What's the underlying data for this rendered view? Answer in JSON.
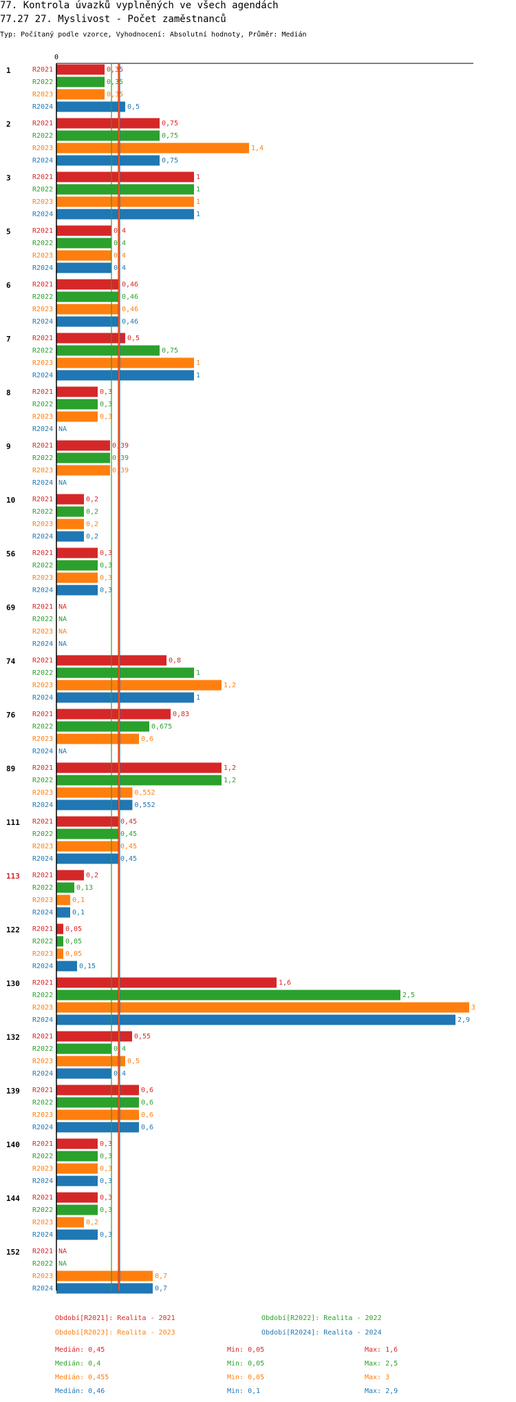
{
  "title": "77. Kontrola úvazků vyplněných ve všech agendách",
  "subtitle": "77.27 27. Myslivost - Počet zaměstnanců",
  "info": "Typ: Počítaný podle vzorce, Vyhodnocení: Absolutní hodnoty, Průměr: Medián",
  "colors": {
    "R2021": "#d62728",
    "R2022": "#2ca02c",
    "R2023": "#ff7f0e",
    "R2024": "#1f77b4",
    "highlight": "#d62728",
    "text": "#000000"
  },
  "chart_data": {
    "type": "bar",
    "orientation": "horizontal",
    "axis_zero_label": "0",
    "xlim": [
      0,
      3
    ],
    "series_names": [
      "R2021",
      "R2022",
      "R2023",
      "R2024"
    ],
    "na_label": "NA",
    "groups": [
      {
        "label": "1",
        "values": [
          0.35,
          0.35,
          0.35,
          0.5
        ],
        "labels": [
          "0,35",
          "0,35",
          "0,35",
          "0,5"
        ]
      },
      {
        "label": "2",
        "values": [
          0.75,
          0.75,
          1.4,
          0.75
        ],
        "labels": [
          "0,75",
          "0,75",
          "1,4",
          "0,75"
        ]
      },
      {
        "label": "3",
        "values": [
          1,
          1,
          1,
          1
        ],
        "labels": [
          "1",
          "1",
          "1",
          "1"
        ]
      },
      {
        "label": "5",
        "values": [
          0.4,
          0.4,
          0.4,
          0.4
        ],
        "labels": [
          "0,4",
          "0,4",
          "0,4",
          "0,4"
        ]
      },
      {
        "label": "6",
        "values": [
          0.46,
          0.46,
          0.46,
          0.46
        ],
        "labels": [
          "0,46",
          "0,46",
          "0,46",
          "0,46"
        ]
      },
      {
        "label": "7",
        "values": [
          0.5,
          0.75,
          1,
          1
        ],
        "labels": [
          "0,5",
          "0,75",
          "1",
          "1"
        ]
      },
      {
        "label": "8",
        "values": [
          0.3,
          0.3,
          0.3,
          null
        ],
        "labels": [
          "0,3",
          "0,3",
          "0,3",
          "NA"
        ]
      },
      {
        "label": "9",
        "values": [
          0.39,
          0.39,
          0.39,
          null
        ],
        "labels": [
          "0,39",
          "0,39",
          "0,39",
          "NA"
        ]
      },
      {
        "label": "10",
        "values": [
          0.2,
          0.2,
          0.2,
          0.2
        ],
        "labels": [
          "0,2",
          "0,2",
          "0,2",
          "0,2"
        ]
      },
      {
        "label": "56",
        "values": [
          0.3,
          0.3,
          0.3,
          0.3
        ],
        "labels": [
          "0,3",
          "0,3",
          "0,3",
          "0,3"
        ]
      },
      {
        "label": "69",
        "values": [
          null,
          null,
          null,
          null
        ],
        "labels": [
          "NA",
          "NA",
          "NA",
          "NA"
        ]
      },
      {
        "label": "74",
        "values": [
          0.8,
          1,
          1.2,
          1
        ],
        "labels": [
          "0,8",
          "1",
          "1,2",
          "1"
        ]
      },
      {
        "label": "76",
        "values": [
          0.83,
          0.675,
          0.6,
          null
        ],
        "labels": [
          "0,83",
          "0,675",
          "0,6",
          "NA"
        ]
      },
      {
        "label": "89",
        "values": [
          1.2,
          1.2,
          0.552,
          0.552
        ],
        "labels": [
          "1,2",
          "1,2",
          "0,552",
          "0,552"
        ]
      },
      {
        "label": "111",
        "values": [
          0.45,
          0.45,
          0.45,
          0.45
        ],
        "labels": [
          "0,45",
          "0,45",
          "0,45",
          "0,45"
        ]
      },
      {
        "label": "113",
        "highlight": true,
        "values": [
          0.2,
          0.13,
          0.1,
          0.1
        ],
        "labels": [
          "0,2",
          "0,13",
          "0,1",
          "0,1"
        ]
      },
      {
        "label": "122",
        "values": [
          0.05,
          0.05,
          0.05,
          0.15
        ],
        "labels": [
          "0,05",
          "0,05",
          "0,05",
          "0,15"
        ]
      },
      {
        "label": "130",
        "values": [
          1.6,
          2.5,
          3,
          2.9
        ],
        "labels": [
          "1,6",
          "2,5",
          "3",
          "2,9"
        ]
      },
      {
        "label": "132",
        "values": [
          0.55,
          0.4,
          0.5,
          0.4
        ],
        "labels": [
          "0,55",
          "0,4",
          "0,5",
          "0,4"
        ]
      },
      {
        "label": "139",
        "values": [
          0.6,
          0.6,
          0.6,
          0.6
        ],
        "labels": [
          "0,6",
          "0,6",
          "0,6",
          "0,6"
        ]
      },
      {
        "label": "140",
        "values": [
          0.3,
          0.3,
          0.3,
          0.3
        ],
        "labels": [
          "0,3",
          "0,3",
          "0,3",
          "0,3"
        ]
      },
      {
        "label": "144",
        "values": [
          0.3,
          0.3,
          0.2,
          0.3
        ],
        "labels": [
          "0,3",
          "0,3",
          "0,2",
          "0,3"
        ]
      },
      {
        "label": "152",
        "values": [
          null,
          null,
          0.7,
          0.7
        ],
        "labels": [
          "NA",
          "NA",
          "0,7",
          "0,7"
        ]
      }
    ],
    "median_lines": [
      {
        "series": "R2021",
        "value": 0.45
      },
      {
        "series": "R2022",
        "value": 0.4
      },
      {
        "series": "R2023",
        "value": 0.455
      },
      {
        "series": "R2024",
        "value": 0.46
      }
    ]
  },
  "legend": {
    "periods": [
      "Období[R2021]: Realita - 2021",
      "Období[R2022]: Realita - 2022",
      "Období[R2023]: Realita - 2023",
      "Období[R2024]: Realita - 2024"
    ],
    "stats": [
      {
        "median": "Medián: 0,45",
        "min": "Min: 0,05",
        "max": "Max: 1,6"
      },
      {
        "median": "Medián: 0,4",
        "min": "Min: 0,05",
        "max": "Max: 2,5"
      },
      {
        "median": "Medián: 0,455",
        "min": "Min: 0,05",
        "max": "Max: 3"
      },
      {
        "median": "Medián: 0,46",
        "min": "Min: 0,1",
        "max": "Max: 2,9"
      }
    ]
  }
}
